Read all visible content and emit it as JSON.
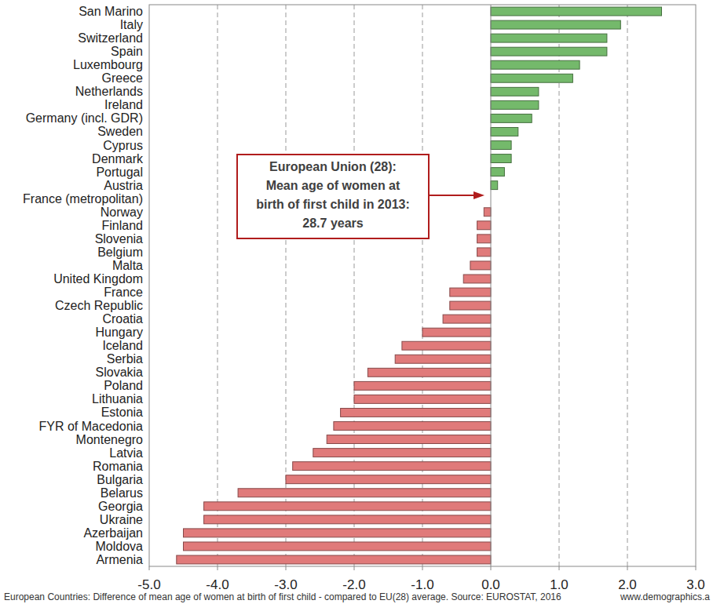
{
  "chart_data": {
    "type": "bar",
    "orientation": "horizontal",
    "categories": [
      "San Marino",
      "Italy",
      "Switzerland",
      "Spain",
      "Luxembourg",
      "Greece",
      "Netherlands",
      "Ireland",
      "Germany (incl. GDR)",
      "Sweden",
      "Cyprus",
      "Denmark",
      "Portugal",
      "Austria",
      "France (metropolitan)",
      "Norway",
      "Finland",
      "Slovenia",
      "Belgium",
      "Malta",
      "United Kingdom",
      "France",
      "Czech Republic",
      "Croatia",
      "Hungary",
      "Iceland",
      "Serbia",
      "Slovakia",
      "Poland",
      "Lithuania",
      "Estonia",
      "FYR of Macedonia",
      "Montenegro",
      "Latvia",
      "Romania",
      "Bulgaria",
      "Belarus",
      "Georgia",
      "Ukraine",
      "Azerbaijan",
      "Moldova",
      "Armenia"
    ],
    "values": [
      2.5,
      1.9,
      1.7,
      1.7,
      1.3,
      1.2,
      0.7,
      0.7,
      0.6,
      0.4,
      0.3,
      0.3,
      0.2,
      0.1,
      0.0,
      -0.1,
      -0.2,
      -0.2,
      -0.2,
      -0.3,
      -0.4,
      -0.6,
      -0.6,
      -0.7,
      -1.0,
      -1.3,
      -1.4,
      -1.8,
      -2.0,
      -2.0,
      -2.2,
      -2.3,
      -2.4,
      -2.6,
      -2.9,
      -3.0,
      -3.7,
      -4.2,
      -4.2,
      -4.5,
      -4.5,
      -4.6
    ],
    "colors": [
      "#74b96b",
      "#74b96b",
      "#74b96b",
      "#74b96b",
      "#74b96b",
      "#74b96b",
      "#74b96b",
      "#74b96b",
      "#74b96b",
      "#74b96b",
      "#74b96b",
      "#74b96b",
      "#74b96b",
      "#74b96b",
      "#74b96b",
      "#e07a7a",
      "#e07a7a",
      "#e07a7a",
      "#e07a7a",
      "#e07a7a",
      "#e07a7a",
      "#e07a7a",
      "#e07a7a",
      "#e07a7a",
      "#e07a7a",
      "#e07a7a",
      "#e07a7a",
      "#e07a7a",
      "#e07a7a",
      "#e07a7a",
      "#e07a7a",
      "#e07a7a",
      "#e07a7a",
      "#e07a7a",
      "#e07a7a",
      "#e07a7a",
      "#e07a7a",
      "#e07a7a",
      "#e07a7a",
      "#e07a7a",
      "#e07a7a",
      "#e07a7a"
    ],
    "xlim": [
      -5,
      3
    ],
    "xticks": [
      {
        "value": -5,
        "label": "-5.0"
      },
      {
        "value": -4,
        "label": "-4.0"
      },
      {
        "value": -3,
        "label": "-3.0"
      },
      {
        "value": -2,
        "label": "-2.0"
      },
      {
        "value": -1,
        "label": "-1.0"
      },
      {
        "value": 0,
        "label": "0.0"
      },
      {
        "value": 1,
        "label": "1.0"
      },
      {
        "value": 2,
        "label": "2.0"
      },
      {
        "value": 3,
        "label": "3.0"
      }
    ],
    "grid": true,
    "annotation": [
      "European Union (28):",
      "Mean age of women at",
      "birth of first child in 2013:",
      "28.7 years"
    ],
    "caption": "European  Countries: Difference of mean age of women at birth of first child  - compared to EU(28) average. Source: EUROSTAT,  2016",
    "credit": "www.demographics.a"
  }
}
